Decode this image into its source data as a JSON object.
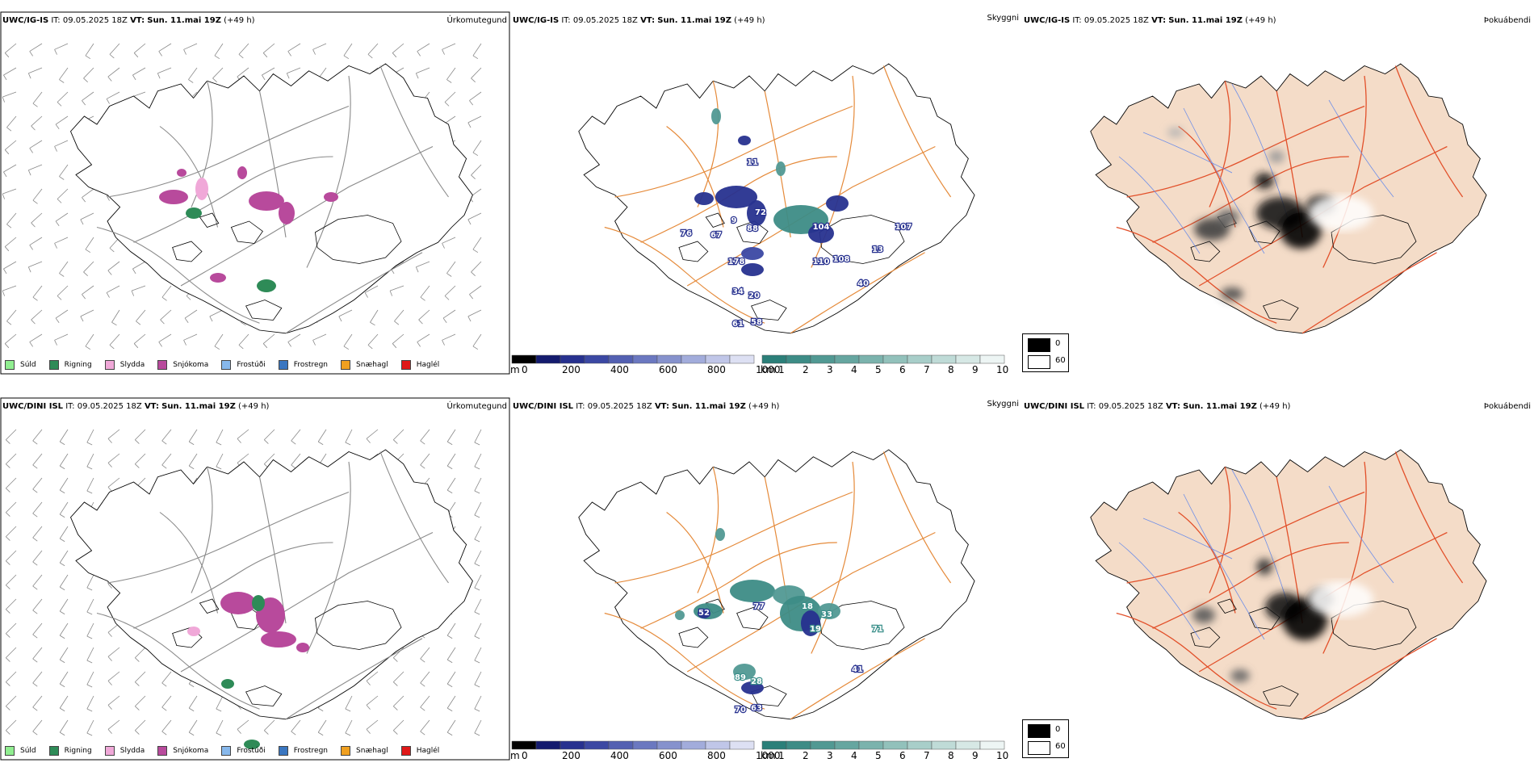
{
  "rows": [
    {
      "model": "UWC/IG-IS",
      "it_label": "IT:",
      "it_value": "09.05.2025 18Z",
      "vt_label": "VT:",
      "vt_value": "Sun. 11.mai 19Z",
      "lead": "(+49 h)",
      "panel_titles": [
        "Úrkomutegund",
        "Skyggni",
        "Þokuábendi"
      ],
      "labels_m": [
        "11",
        "72",
        "9",
        "76",
        "67",
        "88",
        "178",
        "104",
        "107",
        "13",
        "110",
        "108",
        "40",
        "34",
        "20",
        "61",
        "58"
      ],
      "labels_m_colors": [
        "#27318f",
        "#27318f",
        "#27318f",
        "#27318f",
        "#27318f",
        "#27318f",
        "#27318f",
        "#27318f",
        "#27318f",
        "#27318f",
        "#27318f",
        "#27318f",
        "#27318f",
        "#27318f",
        "#27318f",
        "#27318f",
        "#27318f"
      ]
    },
    {
      "model": "UWC/DINI ISL",
      "it_label": "IT:",
      "it_value": "09.05.2025 18Z",
      "vt_label": "VT:",
      "vt_value": "Sun. 11.mai 19Z",
      "lead": "(+49 h)",
      "panel_titles": [
        "Úrkomutegund",
        "Skyggni",
        "Þokuábendi"
      ],
      "labels_m": [
        "77",
        "18",
        "33",
        "19",
        "71",
        "52",
        "41",
        "89",
        "28",
        "70",
        "63"
      ],
      "labels_m_colors": [
        "#27318f",
        "#3a8f8a",
        "#3a8f8a",
        "#3a8f8a",
        "#3a8f8a",
        "#27318f",
        "#27318f",
        "#3a8f8a",
        "#3a8f8a",
        "#27318f",
        "#27318f"
      ]
    }
  ],
  "precip_legend": [
    {
      "label": "Súld",
      "color": "#90ee90"
    },
    {
      "label": "Rigning",
      "color": "#2e8b57"
    },
    {
      "label": "Slydda",
      "color": "#f0a8d8"
    },
    {
      "label": "Snjókoma",
      "color": "#b84a9c"
    },
    {
      "label": "Frostúði",
      "color": "#87b8ec"
    },
    {
      "label": "Frostregn",
      "color": "#3a76c0"
    },
    {
      "label": "Snæhagl",
      "color": "#f0a020"
    },
    {
      "label": "Haglél",
      "color": "#e01818"
    }
  ],
  "visibility_scale_m": {
    "unit": "m",
    "ticks": [
      "0",
      "200",
      "400",
      "600",
      "800",
      "1000"
    ],
    "colors": [
      "#000000",
      "#141b6e",
      "#27318f",
      "#3b48a3",
      "#5360b2",
      "#6b78c0",
      "#8692cd",
      "#a2acdb",
      "#c0c6e8",
      "#dde0f3"
    ]
  },
  "visibility_scale_km": {
    "unit": "km",
    "ticks": [
      "1",
      "2",
      "3",
      "4",
      "5",
      "6",
      "7",
      "8",
      "9",
      "10"
    ],
    "colors": [
      "#2b7f79",
      "#3d8c86",
      "#519993",
      "#66a6a0",
      "#7bb3ad",
      "#92c1bb",
      "#a8cec9",
      "#bfdbd7",
      "#d6e8e5",
      "#edf5f4"
    ]
  },
  "fog_legend": {
    "items": [
      {
        "label": "0",
        "color": "#000000"
      },
      {
        "label": "60",
        "color": "#ffffff"
      }
    ]
  }
}
